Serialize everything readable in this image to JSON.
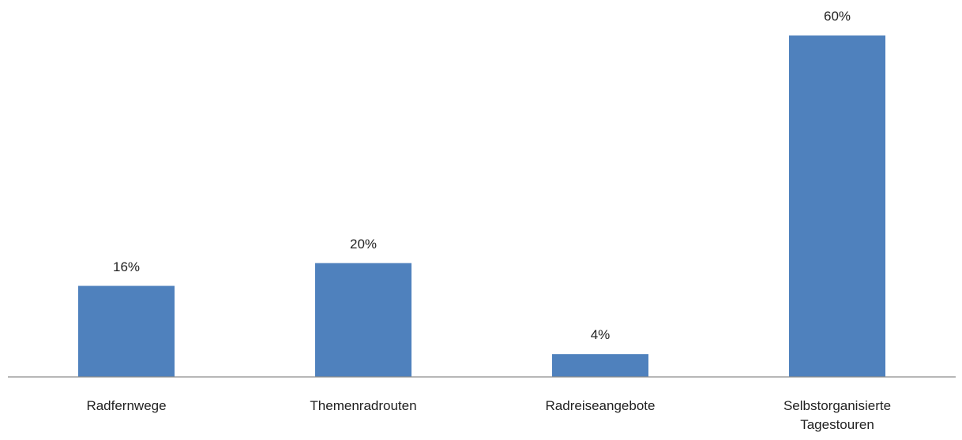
{
  "chart_data": {
    "type": "bar",
    "categories": [
      "Radfernwege",
      "Themenradrouten",
      "Radreiseangebote",
      "Selbstorganisierte Tagestouren"
    ],
    "values": [
      16,
      20,
      4,
      60
    ],
    "value_labels": [
      "16%",
      "20%",
      "4%",
      "60%"
    ],
    "color": "#4f81bd"
  }
}
